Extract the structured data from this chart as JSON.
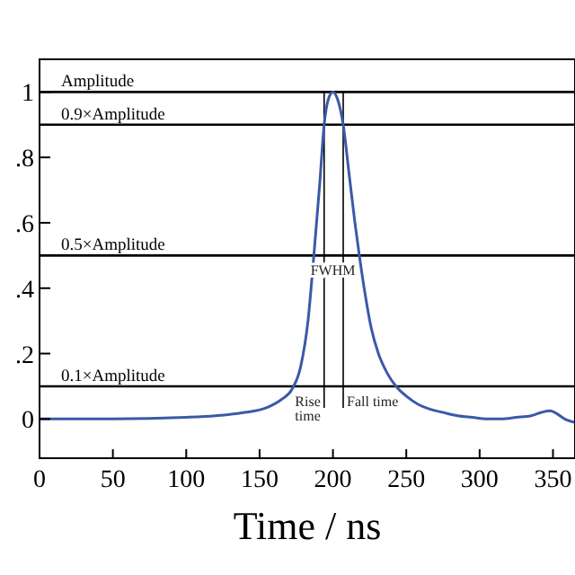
{
  "chart_data": {
    "type": "line",
    "xlabel": "Time / ns",
    "xlim": [
      0,
      365
    ],
    "xticks": [
      0,
      50,
      100,
      150,
      200,
      250,
      300,
      350
    ],
    "ylim": [
      -0.12,
      1.1
    ],
    "yticks": [
      0,
      {
        "value": 0.2,
        "label": ".2"
      },
      {
        "value": 0.4,
        "label": ".4"
      },
      {
        "value": 0.6,
        "label": ".6"
      },
      {
        "value": 0.8,
        "label": ".8"
      },
      1
    ],
    "series": [
      {
        "color": "#3a5aa8",
        "x": [
          0,
          50,
          100,
          120,
          140,
          155,
          165,
          172,
          178,
          183,
          187,
          191,
          194,
          197,
          200,
          203,
          207,
          211,
          215,
          218,
          222,
          226,
          231,
          237,
          243,
          250,
          258,
          266,
          275,
          285,
          295,
          305,
          315,
          325,
          335,
          342,
          348,
          353,
          358,
          365
        ],
        "values": [
          0,
          0,
          0.005,
          0.01,
          0.02,
          0.035,
          0.06,
          0.09,
          0.16,
          0.3,
          0.5,
          0.72,
          0.9,
          0.98,
          1.0,
          0.98,
          0.9,
          0.75,
          0.6,
          0.5,
          0.38,
          0.28,
          0.2,
          0.14,
          0.1,
          0.07,
          0.045,
          0.03,
          0.02,
          0.01,
          0.005,
          0.0,
          0.0,
          0.005,
          0.01,
          0.02,
          0.025,
          0.015,
          0.0,
          -0.01
        ]
      }
    ],
    "ref_lines": [
      {
        "axis": "y",
        "value": 1,
        "label": "Amplitude"
      },
      {
        "axis": "y",
        "value": 0.9,
        "label": "0.9×Amplitude"
      },
      {
        "axis": "y",
        "value": 0.5,
        "label": "0.5×Amplitude"
      },
      {
        "axis": "y",
        "value": 0.1,
        "label": "0.1×Amplitude"
      },
      {
        "axis": "x",
        "value": 194
      },
      {
        "axis": "x",
        "value": 207
      }
    ],
    "annotations": [
      {
        "text": "FWHM",
        "x": 200,
        "y": 0.5
      },
      {
        "text": "Rise time",
        "x": 194,
        "y": 0.1
      },
      {
        "text": "Fall time",
        "x": 207,
        "y": 0.1
      }
    ],
    "grid": false
  }
}
